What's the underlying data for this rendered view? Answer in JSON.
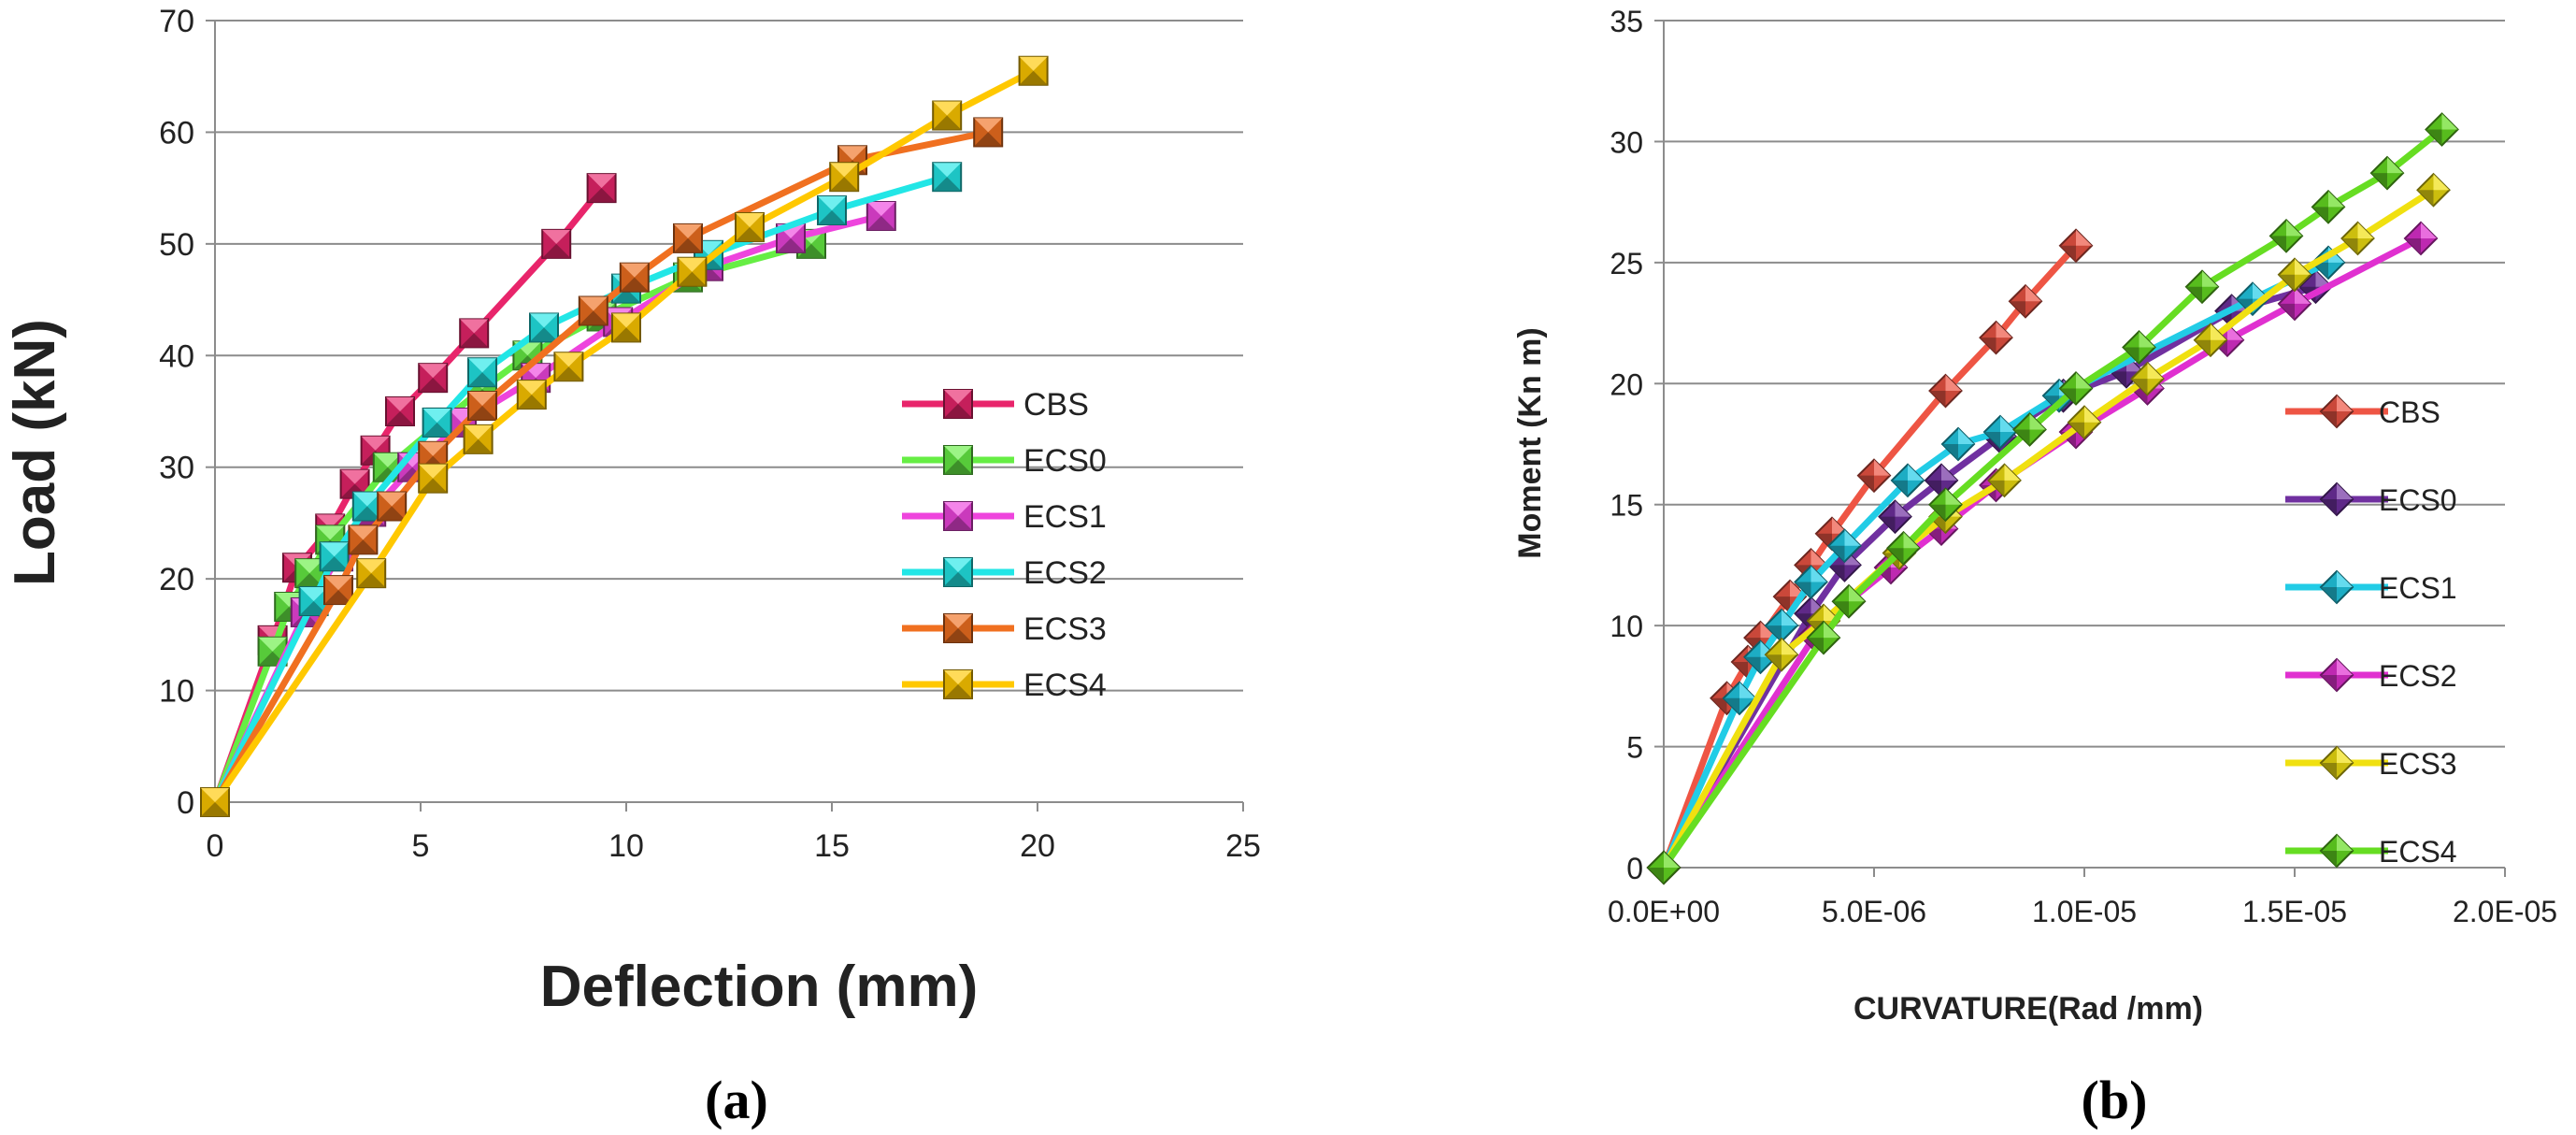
{
  "chart_data": [
    {
      "type": "line",
      "caption": "(a)",
      "xlabel": "Deflection (mm)",
      "ylabel": "Load (kN)",
      "xlim": [
        0,
        25
      ],
      "ylim": [
        0,
        70
      ],
      "xticks": [
        "0",
        "5",
        "10",
        "15",
        "20",
        "25"
      ],
      "yticks": [
        "0",
        "10",
        "20",
        "30",
        "40",
        "50",
        "60",
        "70"
      ],
      "grid": "horizontal",
      "legend_position": "right",
      "series": [
        {
          "name": "CBS",
          "color": "#e8256b",
          "points": [
            [
              0,
              0
            ],
            [
              1.4,
              14.5
            ],
            [
              2.0,
              21
            ],
            [
              2.8,
              24.5
            ],
            [
              3.4,
              28.5
            ],
            [
              3.9,
              31.5
            ],
            [
              4.5,
              35
            ],
            [
              5.3,
              38
            ],
            [
              6.3,
              42
            ],
            [
              8.3,
              50
            ],
            [
              9.4,
              55
            ]
          ]
        },
        {
          "name": "ECS0",
          "color": "#66ee44",
          "points": [
            [
              0,
              0
            ],
            [
              1.4,
              13.5
            ],
            [
              1.8,
              17.5
            ],
            [
              2.3,
              20.5
            ],
            [
              2.8,
              23.5
            ],
            [
              4.2,
              30
            ],
            [
              5.5,
              34
            ],
            [
              6.5,
              37
            ],
            [
              7.6,
              40
            ],
            [
              9.4,
              43.5
            ],
            [
              11.5,
              47
            ],
            [
              14.5,
              50
            ]
          ]
        },
        {
          "name": "ECS1",
          "color": "#ee44dd",
          "points": [
            [
              0,
              0
            ],
            [
              2.2,
              17
            ],
            [
              3.0,
              22
            ],
            [
              3.8,
              26
            ],
            [
              4.8,
              30
            ],
            [
              6.0,
              34
            ],
            [
              7.8,
              38
            ],
            [
              9.8,
              43
            ],
            [
              12.0,
              48
            ],
            [
              14.0,
              50.5
            ],
            [
              16.2,
              52.5
            ]
          ]
        },
        {
          "name": "ECS2",
          "color": "#22e6e6",
          "points": [
            [
              0,
              0
            ],
            [
              2.4,
              18
            ],
            [
              2.9,
              22
            ],
            [
              3.7,
              26.5
            ],
            [
              5.4,
              34
            ],
            [
              6.5,
              38.5
            ],
            [
              8.0,
              42.5
            ],
            [
              10.0,
              46
            ],
            [
              12.0,
              49
            ],
            [
              15.0,
              53
            ],
            [
              17.8,
              56
            ]
          ]
        },
        {
          "name": "ECS3",
          "color": "#f07020",
          "points": [
            [
              0,
              0
            ],
            [
              3.0,
              19
            ],
            [
              3.6,
              23.5
            ],
            [
              4.3,
              26.5
            ],
            [
              5.3,
              31
            ],
            [
              6.5,
              35.5
            ],
            [
              9.2,
              44
            ],
            [
              10.2,
              47
            ],
            [
              11.5,
              50.5
            ],
            [
              15.5,
              57.5
            ],
            [
              18.8,
              60
            ]
          ]
        },
        {
          "name": "ECS4",
          "color": "#ffc800",
          "points": [
            [
              0,
              0
            ],
            [
              3.8,
              20.5
            ],
            [
              5.3,
              29
            ],
            [
              6.4,
              32.5
            ],
            [
              7.7,
              36.5
            ],
            [
              8.6,
              39
            ],
            [
              10.0,
              42.5
            ],
            [
              11.6,
              47.5
            ],
            [
              13.0,
              51.5
            ],
            [
              15.3,
              56
            ],
            [
              17.8,
              61.5
            ],
            [
              19.9,
              65.5
            ]
          ]
        }
      ]
    },
    {
      "type": "line",
      "caption": "(b)",
      "xlabel": "CURVATURE(Rad /mm)",
      "ylabel": "Moment (Kn m)",
      "xlim": [
        0,
        2e-05
      ],
      "ylim": [
        0,
        35
      ],
      "xticks": [
        "0.0E+00",
        "5.0E-06",
        "1.0E-05",
        "1.5E-05",
        "2.0E-05"
      ],
      "yticks": [
        "0",
        "5",
        "10",
        "15",
        "20",
        "25",
        "30",
        "35"
      ],
      "grid": "horizontal",
      "legend_position": "right",
      "series": [
        {
          "name": "CBS",
          "color": "#ee5544",
          "points": [
            [
              0,
              0
            ],
            [
              1.5e-06,
              7
            ],
            [
              2e-06,
              8.5
            ],
            [
              2.3e-06,
              9.5
            ],
            [
              3e-06,
              11.2
            ],
            [
              3.5e-06,
              12.5
            ],
            [
              4e-06,
              13.8
            ],
            [
              5e-06,
              16.2
            ],
            [
              6.7e-06,
              19.7
            ],
            [
              7.9e-06,
              21.9
            ],
            [
              8.6e-06,
              23.4
            ],
            [
              9.8e-06,
              25.7
            ]
          ]
        },
        {
          "name": "ECS0",
          "color": "#7030a0",
          "points": [
            [
              0,
              0
            ],
            [
              3.5e-06,
              10.5
            ],
            [
              4.3e-06,
              12.5
            ],
            [
              5.5e-06,
              14.5
            ],
            [
              6.6e-06,
              16
            ],
            [
              8e-06,
              17.8
            ],
            [
              9.5e-06,
              19.5
            ],
            [
              1.1e-05,
              20.5
            ],
            [
              1.35e-05,
              23
            ],
            [
              1.55e-05,
              24
            ]
          ]
        },
        {
          "name": "ECS1",
          "color": "#22cce6",
          "points": [
            [
              0,
              0
            ],
            [
              1.8e-06,
              7
            ],
            [
              2.3e-06,
              8.7
            ],
            [
              2.8e-06,
              10
            ],
            [
              3.5e-06,
              11.8
            ],
            [
              4.3e-06,
              13.3
            ],
            [
              5.8e-06,
              16
            ],
            [
              7e-06,
              17.5
            ],
            [
              8e-06,
              18
            ],
            [
              9.4e-06,
              19.5
            ],
            [
              1.4e-05,
              23.5
            ],
            [
              1.58e-05,
              25
            ]
          ]
        },
        {
          "name": "ECS2",
          "color": "#e030d0",
          "points": [
            [
              0,
              0
            ],
            [
              3.6e-06,
              9.6
            ],
            [
              4.4e-06,
              11
            ],
            [
              5.4e-06,
              12.4
            ],
            [
              6.6e-06,
              14
            ],
            [
              7.9e-06,
              15.8
            ],
            [
              9.8e-06,
              18
            ],
            [
              1.15e-05,
              19.8
            ],
            [
              1.34e-05,
              21.8
            ],
            [
              1.5e-05,
              23.3
            ],
            [
              1.8e-05,
              26
            ]
          ]
        },
        {
          "name": "ECS3",
          "color": "#f0e010",
          "points": [
            [
              0,
              0
            ],
            [
              2.8e-06,
              8.8
            ],
            [
              3.8e-06,
              10.2
            ],
            [
              5.6e-06,
              13
            ],
            [
              6.7e-06,
              14.5
            ],
            [
              8.1e-06,
              16
            ],
            [
              1e-05,
              18.4
            ],
            [
              1.15e-05,
              20.2
            ],
            [
              1.3e-05,
              21.8
            ],
            [
              1.5e-05,
              24.5
            ],
            [
              1.65e-05,
              26
            ],
            [
              1.83e-05,
              28
            ]
          ]
        },
        {
          "name": "ECS4",
          "color": "#66dd22",
          "points": [
            [
              0,
              0
            ],
            [
              3.8e-06,
              9.5
            ],
            [
              4.4e-06,
              11
            ],
            [
              5.7e-06,
              13.2
            ],
            [
              6.7e-06,
              15
            ],
            [
              8.7e-06,
              18.1
            ],
            [
              9.8e-06,
              19.8
            ],
            [
              1.13e-05,
              21.5
            ],
            [
              1.28e-05,
              24
            ],
            [
              1.48e-05,
              26.1
            ],
            [
              1.58e-05,
              27.3
            ],
            [
              1.72e-05,
              28.7
            ],
            [
              1.85e-05,
              30.5
            ]
          ]
        }
      ]
    }
  ]
}
